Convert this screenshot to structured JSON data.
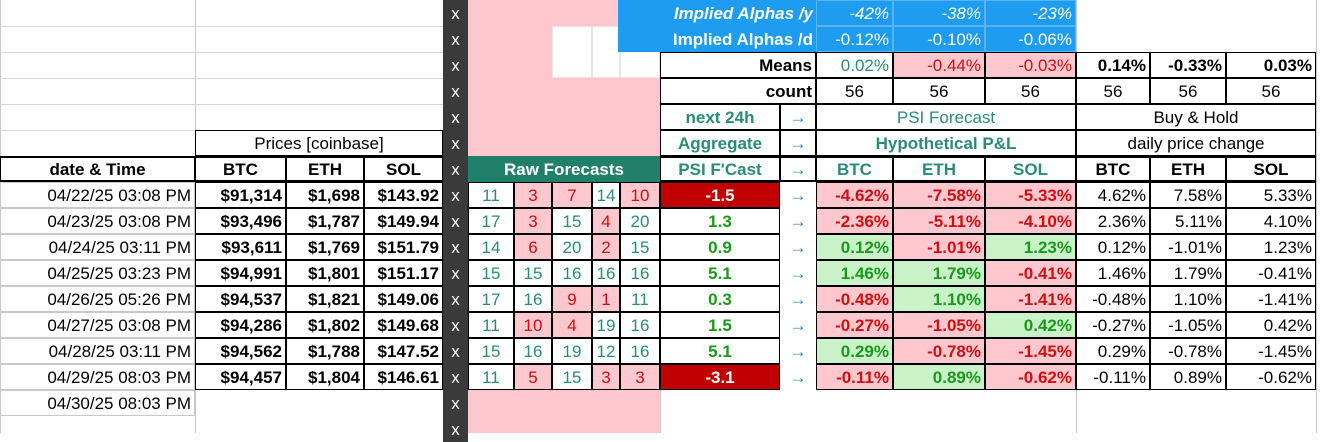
{
  "header": {
    "implied_alphas_y_label": "Implied Alphas /y",
    "implied_alphas_y": [
      "-42%",
      "-38%",
      "-23%"
    ],
    "implied_alphas_d_label": "Implied Alphas /d",
    "implied_alphas_d": [
      "-0.12%",
      "-0.10%",
      "-0.06%"
    ],
    "means_label": "Means",
    "means_psi": [
      "0.02%",
      "-0.44%",
      "-0.03%"
    ],
    "means_bh": [
      "0.14%",
      "-0.33%",
      "0.03%"
    ],
    "count_label": "count",
    "counts": [
      "56",
      "56",
      "56",
      "56",
      "56",
      "56"
    ],
    "next24": "next 24h",
    "aggregate": "Aggregate",
    "psi_fcast": "PSI F'Cast",
    "psi_forecast": "PSI Forecast",
    "hyp_pl": "Hypothetical P&L",
    "buy_hold": "Buy & Hold",
    "daily_change": "daily price change",
    "prices_group": "Prices [coinbase]",
    "date_time": "date & Time",
    "raw_forecasts": "Raw Forecasts",
    "arrow": "→",
    "x_mark": "x",
    "assets": [
      "BTC",
      "ETH",
      "SOL"
    ]
  },
  "rows": [
    {
      "date": "04/22/25 03:08 PM",
      "btc": "$91,314",
      "eth": "$1,698",
      "sol": "$143.92",
      "raw": [
        "11",
        "3",
        "7",
        "14",
        "10"
      ],
      "psi": "-1.5",
      "pl": [
        "-4.62%",
        "-7.58%",
        "-5.33%"
      ],
      "bh": [
        "4.62%",
        "7.58%",
        "5.33%"
      ]
    },
    {
      "date": "04/23/25 03:08 PM",
      "btc": "$93,496",
      "eth": "$1,787",
      "sol": "$149.94",
      "raw": [
        "17",
        "3",
        "15",
        "4",
        "20"
      ],
      "psi": "1.3",
      "pl": [
        "-2.36%",
        "-5.11%",
        "-4.10%"
      ],
      "bh": [
        "2.36%",
        "5.11%",
        "4.10%"
      ]
    },
    {
      "date": "04/24/25 03:11 PM",
      "btc": "$93,611",
      "eth": "$1,769",
      "sol": "$151.79",
      "raw": [
        "14",
        "6",
        "20",
        "2",
        "15"
      ],
      "psi": "0.9",
      "pl": [
        "0.12%",
        "-1.01%",
        "1.23%"
      ],
      "bh": [
        "0.12%",
        "-1.01%",
        "1.23%"
      ]
    },
    {
      "date": "04/25/25 03:23 PM",
      "btc": "$94,991",
      "eth": "$1,801",
      "sol": "$151.17",
      "raw": [
        "15",
        "15",
        "16",
        "16",
        "16"
      ],
      "psi": "5.1",
      "pl": [
        "1.46%",
        "1.79%",
        "-0.41%"
      ],
      "bh": [
        "1.46%",
        "1.79%",
        "-0.41%"
      ]
    },
    {
      "date": "04/26/25 05:26 PM",
      "btc": "$94,537",
      "eth": "$1,821",
      "sol": "$149.06",
      "raw": [
        "17",
        "16",
        "9",
        "1",
        "11"
      ],
      "psi": "0.3",
      "pl": [
        "-0.48%",
        "1.10%",
        "-1.41%"
      ],
      "bh": [
        "-0.48%",
        "1.10%",
        "-1.41%"
      ]
    },
    {
      "date": "04/27/25 03:08 PM",
      "btc": "$94,286",
      "eth": "$1,802",
      "sol": "$149.68",
      "raw": [
        "11",
        "10",
        "4",
        "19",
        "16"
      ],
      "psi": "1.5",
      "pl": [
        "-0.27%",
        "-1.05%",
        "0.42%"
      ],
      "bh": [
        "-0.27%",
        "-1.05%",
        "0.42%"
      ]
    },
    {
      "date": "04/28/25 03:11 PM",
      "btc": "$94,562",
      "eth": "$1,788",
      "sol": "$147.52",
      "raw": [
        "15",
        "16",
        "19",
        "12",
        "16"
      ],
      "psi": "5.1",
      "pl": [
        "0.29%",
        "-0.78%",
        "-1.45%"
      ],
      "bh": [
        "0.29%",
        "-0.78%",
        "-1.45%"
      ]
    },
    {
      "date": "04/29/25 08:03 PM",
      "btc": "$94,457",
      "eth": "$1,804",
      "sol": "$146.61",
      "raw": [
        "11",
        "5",
        "15",
        "3",
        "3"
      ],
      "psi": "-3.1",
      "pl": [
        "-0.11%",
        "0.89%",
        "-0.62%"
      ],
      "bh": [
        "-0.11%",
        "0.89%",
        "-0.62%"
      ]
    },
    {
      "date": "04/30/25 08:03 PM"
    }
  ],
  "colors": {
    "blue_header": "#1e9cf0",
    "teal_header": "#21806a",
    "pink_fill": "#ffc7ce",
    "green_fill": "#c9f2c9",
    "red_box": "#c00000",
    "x_column": "#3a3a3a"
  }
}
